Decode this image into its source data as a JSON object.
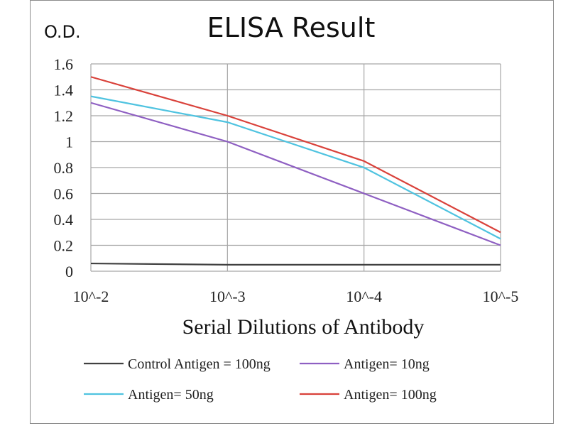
{
  "chart_data": {
    "type": "line",
    "title": "ELISA Result",
    "ylabel": "O.D.",
    "xlabel": "Serial Dilutions  of Antibody",
    "categories": [
      "10^-2",
      "10^-3",
      "10^-4",
      "10^-5"
    ],
    "y_ticks": [
      "0",
      "0.2",
      "0.4",
      "0.6",
      "0.8",
      "1",
      "1.2",
      "1.4",
      "1.6"
    ],
    "ylim": [
      0,
      1.6
    ],
    "grid": true,
    "legend_position": "bottom",
    "series": [
      {
        "name": "Control Antigen = 100ng",
        "color": "#404040",
        "values": [
          0.06,
          0.05,
          0.05,
          0.05
        ]
      },
      {
        "name": "Antigen= 10ng",
        "color": "#8e5fc2",
        "values": [
          1.3,
          1.0,
          0.6,
          0.2
        ]
      },
      {
        "name": "Antigen= 50ng",
        "color": "#4fc3e0",
        "values": [
          1.35,
          1.15,
          0.8,
          0.25
        ]
      },
      {
        "name": "Antigen= 100ng",
        "color": "#d9413a",
        "values": [
          1.5,
          1.2,
          0.85,
          0.3
        ]
      }
    ]
  }
}
